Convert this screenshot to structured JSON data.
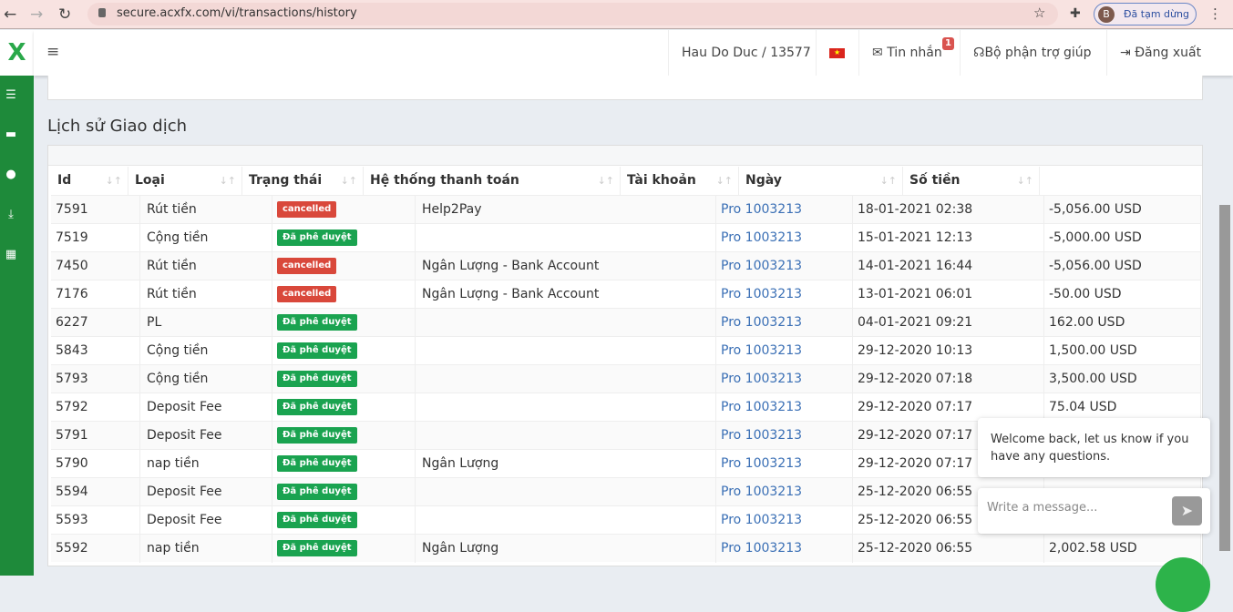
{
  "browser": {
    "url": "secure.acxfx.com/vi/transactions/history",
    "profile_initial": "B",
    "profile_status": "Đã tạm dừng"
  },
  "topbar": {
    "user": "Hau Do Duc / 13577",
    "messages": "Tin nhắn",
    "message_count": "1",
    "support": "Bộ phận trợ giúp",
    "logout": "Đăng xuất"
  },
  "page_title": "Lịch sử Giao dịch",
  "colors": {
    "sidebar": "#1e8a3a",
    "cancelled": "#d9483b",
    "approved": "#1aa350",
    "link": "#3a6fb5"
  },
  "table": {
    "headers": [
      "Id",
      "Loại",
      "Trạng thái",
      "Hệ thống thanh toán",
      "Tài khoản",
      "Ngày",
      "Số tiền"
    ],
    "rows": [
      {
        "id": "7591",
        "type": "Rút tiền",
        "status": "cancelled",
        "system": "Help2Pay",
        "account": "Pro 1003213",
        "date": "18-01-2021 02:38",
        "amount": "-5,056.00 USD"
      },
      {
        "id": "7519",
        "type": "Cộng tiền",
        "status": "Đã phê duyệt",
        "system": "",
        "account": "Pro 1003213",
        "date": "15-01-2021 12:13",
        "amount": "-5,000.00 USD"
      },
      {
        "id": "7450",
        "type": "Rút tiền",
        "status": "cancelled",
        "system": "Ngân Lượng - Bank Account",
        "account": "Pro 1003213",
        "date": "14-01-2021 16:44",
        "amount": "-5,056.00 USD"
      },
      {
        "id": "7176",
        "type": "Rút tiền",
        "status": "cancelled",
        "system": "Ngân Lượng - Bank Account",
        "account": "Pro 1003213",
        "date": "13-01-2021 06:01",
        "amount": "-50.00 USD"
      },
      {
        "id": "6227",
        "type": "PL",
        "status": "Đã phê duyệt",
        "system": "",
        "account": "Pro 1003213",
        "date": "04-01-2021 09:21",
        "amount": "162.00 USD"
      },
      {
        "id": "5843",
        "type": "Cộng tiền",
        "status": "Đã phê duyệt",
        "system": "",
        "account": "Pro 1003213",
        "date": "29-12-2020 10:13",
        "amount": "1,500.00 USD"
      },
      {
        "id": "5793",
        "type": "Cộng tiền",
        "status": "Đã phê duyệt",
        "system": "",
        "account": "Pro 1003213",
        "date": "29-12-2020 07:18",
        "amount": "3,500.00 USD"
      },
      {
        "id": "5792",
        "type": "Deposit Fee",
        "status": "Đã phê duyệt",
        "system": "",
        "account": "Pro 1003213",
        "date": "29-12-2020 07:17",
        "amount": "75.04 USD"
      },
      {
        "id": "5791",
        "type": "Deposit Fee",
        "status": "Đã phê duyệt",
        "system": "",
        "account": "Pro 1003213",
        "date": "29-12-2020 07:17",
        "amount": ""
      },
      {
        "id": "5790",
        "type": "nap tiền",
        "status": "Đã phê duyệt",
        "system": "Ngân Lượng",
        "account": "Pro 1003213",
        "date": "29-12-2020 07:17",
        "amount": ""
      },
      {
        "id": "5594",
        "type": "Deposit Fee",
        "status": "Đã phê duyệt",
        "system": "",
        "account": "Pro 1003213",
        "date": "25-12-2020 06:55",
        "amount": ""
      },
      {
        "id": "5593",
        "type": "Deposit Fee",
        "status": "Đã phê duyệt",
        "system": "",
        "account": "Pro 1003213",
        "date": "25-12-2020 06:55",
        "amount": ""
      },
      {
        "id": "5592",
        "type": "nap tiền",
        "status": "Đã phê duyệt",
        "system": "Ngân Lượng",
        "account": "Pro 1003213",
        "date": "25-12-2020 06:55",
        "amount": "2,002.58 USD"
      }
    ]
  },
  "chat": {
    "welcome": "Welcome back, let us know if you have any questions.",
    "placeholder": "Write a message..."
  }
}
